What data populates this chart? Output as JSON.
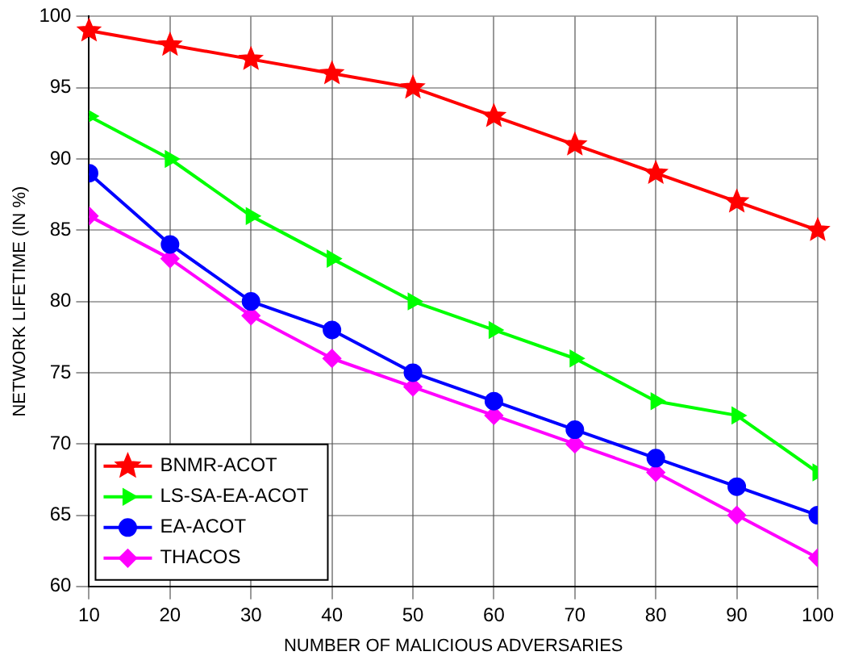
{
  "chart_data": {
    "type": "line",
    "xlabel": "NUMBER OF MALICIOUS ADVERSARIES",
    "ylabel": "NETWORK LIFETIME (IN %)",
    "x": [
      10,
      20,
      30,
      40,
      50,
      60,
      70,
      80,
      90,
      100
    ],
    "series": [
      {
        "name": "BNMR-ACOT",
        "color": "#ff0000",
        "marker": "star",
        "values": [
          99,
          98,
          97,
          96,
          95,
          93,
          91,
          89,
          87,
          85
        ]
      },
      {
        "name": "LS-SA-EA-ACOT",
        "color": "#00ff00",
        "marker": "triangle",
        "values": [
          93,
          90,
          86,
          83,
          80,
          78,
          76,
          73,
          72,
          68
        ]
      },
      {
        "name": "EA-ACOT",
        "color": "#0000ff",
        "marker": "circle",
        "values": [
          89,
          84,
          80,
          78,
          75,
          73,
          71,
          69,
          67,
          65
        ]
      },
      {
        "name": "THACOS",
        "color": "#ff00ff",
        "marker": "diamond",
        "values": [
          86,
          83,
          79,
          76,
          74,
          72,
          70,
          68,
          65,
          62
        ]
      }
    ],
    "xlim": [
      10,
      100
    ],
    "xticks": [
      10,
      20,
      30,
      40,
      50,
      60,
      70,
      80,
      90,
      100
    ],
    "ylim": [
      60,
      100
    ],
    "yticks": [
      60,
      65,
      70,
      75,
      80,
      85,
      90,
      95,
      100
    ],
    "grid": true,
    "legend": "bottom left",
    "line_style": "solid"
  }
}
